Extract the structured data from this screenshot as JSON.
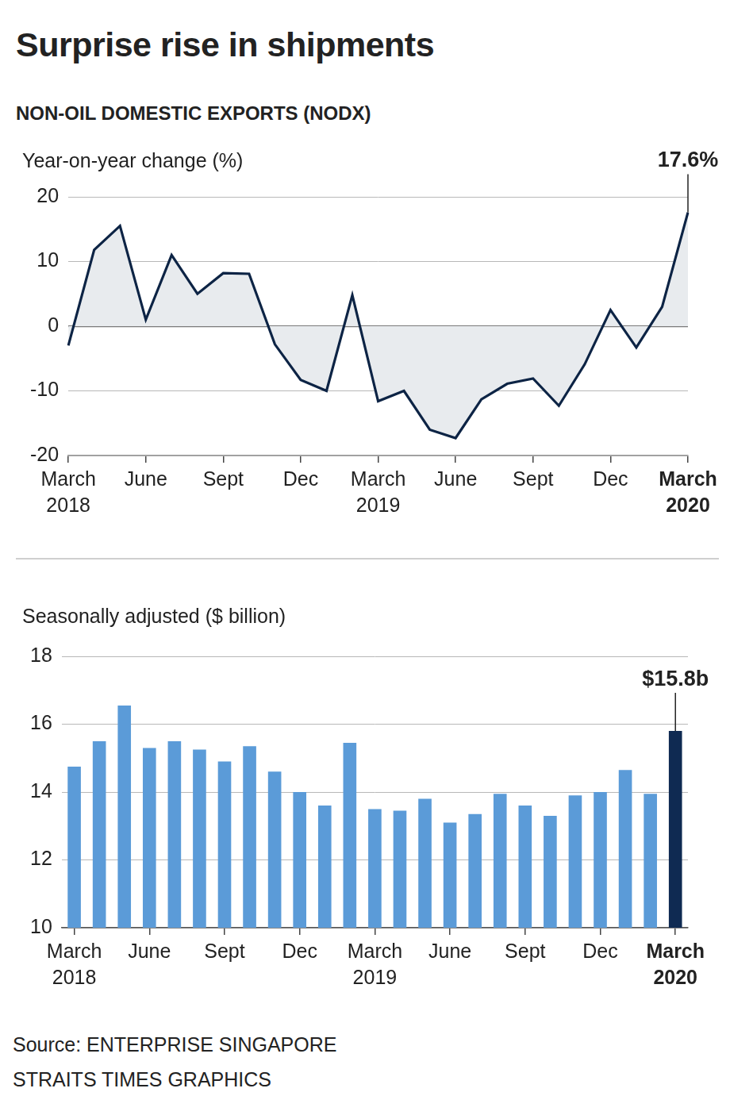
{
  "title": "Surprise rise in shipments",
  "subtitle": "NON-OIL DOMESTIC EXPORTS (NODX)",
  "source": "Source: ENTERPRISE SINGAPORE",
  "credit": "STRAITS TIMES GRAPHICS",
  "chart_data": [
    {
      "type": "area",
      "ylabel": "Year-on-year change (%)",
      "categories": [
        "March 2018",
        null,
        null,
        "June",
        null,
        null,
        "Sept",
        null,
        null,
        "Dec",
        null,
        null,
        "March 2019",
        null,
        null,
        "June",
        null,
        null,
        "Sept",
        null,
        null,
        "Dec",
        null,
        null,
        "March 2020"
      ],
      "values": [
        -3,
        11.8,
        15.5,
        1,
        11,
        5,
        8.2,
        8.1,
        -2.8,
        -8.3,
        -10,
        4.8,
        -11.6,
        -10,
        -16,
        -17.3,
        -11.3,
        -8.9,
        -8.1,
        -12.3,
        -5.9,
        2.5,
        -3.3,
        3,
        17.6
      ],
      "color": "#0d2445",
      "ylim": [
        -20,
        20
      ],
      "yticks": [
        -20,
        -10,
        0,
        10,
        20
      ],
      "grid": true,
      "annotations": [
        {
          "text": "17.6%",
          "x": "March 2020",
          "y": 17.6
        }
      ]
    },
    {
      "type": "bar",
      "ylabel": "Seasonally adjusted ($ billion)",
      "categories": [
        "March 2018",
        null,
        null,
        "June",
        null,
        null,
        "Sept",
        null,
        null,
        "Dec",
        null,
        null,
        "March 2019",
        null,
        null,
        "June",
        null,
        null,
        "Sept",
        null,
        null,
        "Dec",
        null,
        null,
        "March 2020"
      ],
      "values": [
        14.75,
        15.5,
        16.55,
        15.3,
        15.5,
        15.25,
        14.9,
        15.35,
        14.6,
        14.0,
        13.6,
        15.45,
        13.5,
        13.45,
        13.8,
        13.1,
        13.35,
        13.95,
        13.6,
        13.3,
        13.9,
        14.0,
        14.65,
        13.95,
        15.8
      ],
      "colors": [
        "#5b9bd8",
        "#5b9bd8",
        "#5b9bd8",
        "#5b9bd8",
        "#5b9bd8",
        "#5b9bd8",
        "#5b9bd8",
        "#5b9bd8",
        "#5b9bd8",
        "#5b9bd8",
        "#5b9bd8",
        "#5b9bd8",
        "#5b9bd8",
        "#5b9bd8",
        "#5b9bd8",
        "#5b9bd8",
        "#5b9bd8",
        "#5b9bd8",
        "#5b9bd8",
        "#5b9bd8",
        "#5b9bd8",
        "#5b9bd8",
        "#5b9bd8",
        "#5b9bd8",
        "#0f2a52"
      ],
      "ylim": [
        10,
        18
      ],
      "yticks": [
        10,
        12,
        14,
        16,
        18
      ],
      "grid": true,
      "annotations": [
        {
          "text": "$15.8b",
          "x": "March 2020",
          "y": 15.8
        }
      ]
    }
  ]
}
